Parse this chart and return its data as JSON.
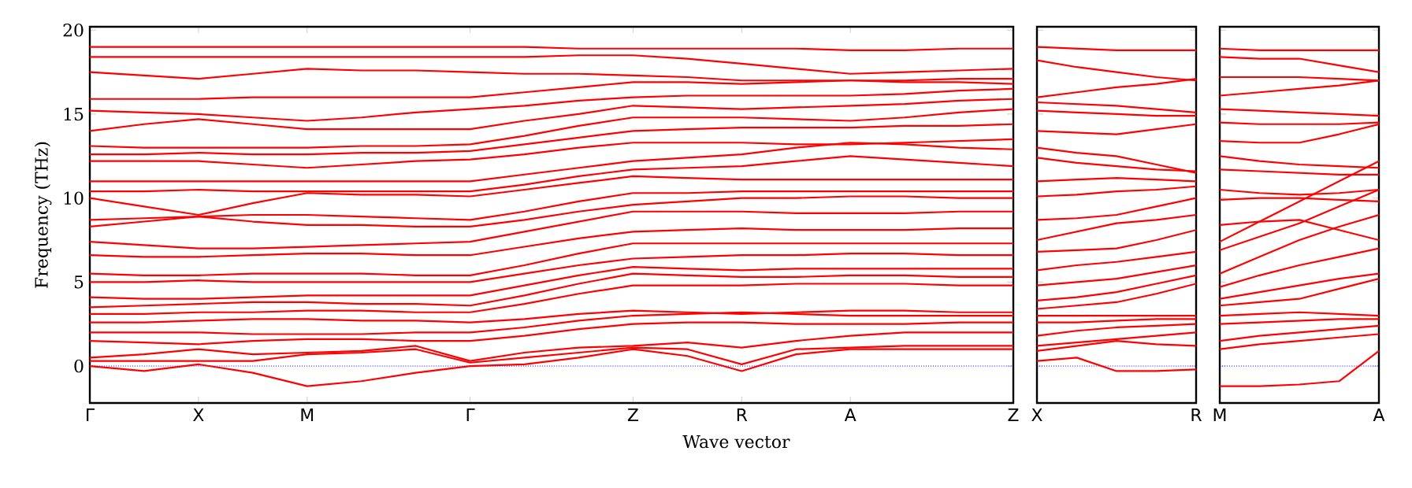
{
  "chart_data": [
    {
      "type": "line",
      "ylabel": "Frequency (THz)",
      "xlabel": "Wave vector",
      "ylim": [
        -2.2,
        20.2
      ],
      "categories": [
        "Γ",
        null,
        "X",
        null,
        "M",
        null,
        null,
        "Γ",
        null,
        null,
        "Z",
        null,
        "R",
        null,
        "A",
        null,
        null,
        "Z"
      ],
      "yticks": [
        0,
        5,
        10,
        15,
        20
      ],
      "ref_lines": [
        {
          "axis": "y",
          "value": 0,
          "color": "#0000ff",
          "line_style": "dotted"
        }
      ],
      "series": [
        {
          "color": "#ff0000",
          "values": [
            0,
            -0.3,
            0.1,
            -0.4,
            -1.2,
            -0.9,
            -0.4,
            0,
            0.1,
            0.5,
            1.0,
            0.6,
            -0.3,
            0.7,
            1.0,
            1.0,
            1.0,
            1.0
          ]
        },
        {
          "color": "#ff0000",
          "values": [
            0.3,
            0.3,
            0.3,
            0.3,
            0.7,
            0.8,
            1.0,
            0.2,
            0.5,
            0.8,
            1.1,
            1.0,
            0.1,
            1.0,
            1.1,
            1.2,
            1.2,
            1.2
          ]
        },
        {
          "color": "#ff0000",
          "values": [
            0.5,
            0.7,
            1.0,
            0.7,
            0.8,
            0.9,
            1.2,
            0.3,
            0.8,
            1.1,
            1.2,
            1.4,
            1.1,
            1.5,
            1.8,
            2.0,
            2.0,
            2.0
          ]
        },
        {
          "color": "#ff0000",
          "values": [
            1.5,
            1.4,
            1.3,
            1.5,
            1.6,
            1.6,
            1.5,
            1.5,
            1.8,
            2.2,
            2.5,
            2.6,
            2.6,
            2.5,
            2.5,
            2.5,
            2.6,
            2.6
          ]
        },
        {
          "color": "#ff0000",
          "values": [
            2.0,
            2.0,
            2.0,
            1.9,
            1.9,
            1.9,
            2.0,
            2.0,
            2.3,
            2.7,
            3.0,
            3.1,
            3.2,
            3.1,
            3.0,
            3.0,
            3.0,
            3.0
          ]
        },
        {
          "color": "#ff0000",
          "values": [
            2.6,
            2.6,
            2.7,
            2.8,
            2.8,
            2.7,
            2.7,
            2.6,
            2.8,
            3.1,
            3.3,
            3.2,
            3.1,
            3.2,
            3.3,
            3.3,
            3.2,
            3.2
          ]
        },
        {
          "color": "#ff0000",
          "values": [
            3.1,
            3.1,
            3.2,
            3.2,
            3.3,
            3.3,
            3.2,
            3.2,
            3.7,
            4.3,
            4.8,
            4.8,
            4.8,
            4.9,
            4.9,
            4.9,
            4.8,
            4.8
          ]
        },
        {
          "color": "#ff0000",
          "values": [
            3.5,
            3.6,
            3.7,
            3.8,
            3.8,
            3.7,
            3.7,
            3.6,
            4.2,
            4.9,
            5.5,
            5.4,
            5.3,
            5.3,
            5.4,
            5.4,
            5.3,
            5.3
          ]
        },
        {
          "color": "#ff0000",
          "values": [
            4.1,
            4.0,
            4.0,
            4.1,
            4.2,
            4.2,
            4.2,
            4.2,
            4.8,
            5.4,
            5.9,
            5.8,
            5.7,
            5.8,
            5.8,
            5.8,
            5.8,
            5.8
          ]
        },
        {
          "color": "#ff0000",
          "values": [
            5.0,
            5.0,
            5.1,
            5.0,
            5.0,
            5.0,
            5.0,
            5.0,
            5.5,
            6.0,
            6.4,
            6.5,
            6.6,
            6.6,
            6.7,
            6.7,
            6.6,
            6.6
          ]
        },
        {
          "color": "#ff0000",
          "values": [
            5.5,
            5.4,
            5.4,
            5.5,
            5.5,
            5.5,
            5.4,
            5.4,
            6.0,
            6.7,
            7.3,
            7.3,
            7.3,
            7.3,
            7.3,
            7.3,
            7.3,
            7.3
          ]
        },
        {
          "color": "#ff0000",
          "values": [
            6.6,
            6.5,
            6.5,
            6.6,
            6.7,
            6.7,
            6.6,
            6.6,
            7.1,
            7.6,
            8.0,
            8.1,
            8.2,
            8.1,
            8.1,
            8.1,
            8.2,
            8.2
          ]
        },
        {
          "color": "#ff0000",
          "values": [
            7.4,
            7.2,
            7.0,
            7.0,
            7.1,
            7.2,
            7.3,
            7.4,
            8.0,
            8.6,
            9.2,
            9.2,
            9.2,
            9.1,
            9.1,
            9.1,
            9.2,
            9.2
          ]
        },
        {
          "color": "#ff0000",
          "values": [
            8.3,
            8.6,
            8.9,
            8.6,
            8.4,
            8.4,
            8.3,
            8.3,
            8.7,
            9.2,
            9.6,
            9.8,
            10.0,
            10.0,
            10.1,
            10.1,
            10.0,
            10.0
          ]
        },
        {
          "color": "#ff0000",
          "values": [
            8.7,
            8.8,
            8.9,
            9.0,
            9.0,
            8.9,
            8.8,
            8.7,
            9.2,
            9.8,
            10.3,
            10.3,
            10.4,
            10.4,
            10.4,
            10.4,
            10.4,
            10.4
          ]
        },
        {
          "color": "#ff0000",
          "values": [
            10.0,
            9.5,
            9.0,
            9.7,
            10.3,
            10.2,
            10.2,
            10.1,
            10.5,
            10.9,
            11.3,
            11.2,
            11.1,
            11.1,
            11.1,
            11.1,
            11.1,
            11.1
          ]
        },
        {
          "color": "#ff0000",
          "values": [
            10.4,
            10.4,
            10.5,
            10.4,
            10.4,
            10.4,
            10.4,
            10.4,
            10.8,
            11.3,
            11.7,
            11.8,
            11.9,
            12.2,
            12.5,
            12.3,
            12.1,
            11.9
          ]
        },
        {
          "color": "#ff0000",
          "values": [
            11.0,
            11.0,
            11.0,
            11.0,
            11.0,
            11.0,
            11.0,
            11.0,
            11.4,
            11.8,
            12.2,
            12.4,
            12.6,
            13.0,
            13.3,
            13.2,
            13.0,
            12.9
          ]
        },
        {
          "color": "#ff0000",
          "values": [
            12.2,
            12.2,
            12.2,
            12.0,
            11.8,
            12.0,
            12.2,
            12.3,
            12.6,
            13.0,
            13.3,
            13.3,
            13.3,
            13.2,
            13.2,
            13.3,
            13.4,
            13.5
          ]
        },
        {
          "color": "#ff0000",
          "values": [
            12.6,
            12.6,
            12.7,
            12.6,
            12.6,
            12.7,
            12.7,
            12.8,
            13.2,
            13.6,
            14.0,
            14.1,
            14.2,
            14.2,
            14.2,
            14.3,
            14.3,
            14.4
          ]
        },
        {
          "color": "#ff0000",
          "values": [
            13.1,
            13.0,
            13.0,
            13.0,
            13.0,
            13.1,
            13.1,
            13.2,
            13.7,
            14.3,
            14.8,
            14.8,
            14.8,
            14.7,
            14.6,
            14.8,
            15.1,
            15.3
          ]
        },
        {
          "color": "#ff0000",
          "values": [
            14.0,
            14.4,
            14.7,
            14.4,
            14.1,
            14.1,
            14.1,
            14.1,
            14.6,
            15.0,
            15.5,
            15.4,
            15.3,
            15.4,
            15.5,
            15.6,
            15.8,
            15.9
          ]
        },
        {
          "color": "#ff0000",
          "values": [
            15.2,
            15.1,
            15.0,
            14.8,
            14.6,
            14.8,
            15.1,
            15.3,
            15.5,
            15.8,
            16.0,
            16.1,
            16.1,
            16.1,
            16.1,
            16.2,
            16.4,
            16.5
          ]
        },
        {
          "color": "#ff0000",
          "values": [
            15.9,
            15.9,
            15.9,
            16.0,
            16.0,
            16.0,
            16.0,
            16.0,
            16.3,
            16.6,
            16.9,
            16.9,
            16.8,
            16.9,
            17.0,
            17.0,
            17.1,
            17.1
          ]
        },
        {
          "color": "#ff0000",
          "values": [
            17.5,
            17.3,
            17.1,
            17.4,
            17.7,
            17.6,
            17.6,
            17.5,
            17.4,
            17.4,
            17.3,
            17.2,
            17.0,
            17.0,
            17.0,
            16.9,
            16.9,
            16.8
          ]
        },
        {
          "color": "#ff0000",
          "values": [
            18.4,
            18.4,
            18.4,
            18.4,
            18.4,
            18.4,
            18.4,
            18.4,
            18.4,
            18.5,
            18.5,
            18.3,
            18.0,
            17.7,
            17.4,
            17.5,
            17.6,
            17.7
          ]
        },
        {
          "color": "#ff0000",
          "values": [
            19.0,
            19.0,
            19.0,
            19.0,
            19.0,
            19.0,
            19.0,
            19.0,
            19.0,
            18.9,
            18.9,
            18.9,
            18.9,
            18.9,
            18.8,
            18.8,
            18.9,
            18.9
          ]
        }
      ]
    },
    {
      "type": "line",
      "tick_labels": "x",
      "ylim": [
        -2.2,
        20.2
      ],
      "categories": [
        "X",
        null,
        null,
        null,
        "R"
      ],
      "yticks": [
        0,
        5,
        10,
        15,
        20
      ],
      "ref_lines": [
        {
          "axis": "y",
          "value": 0,
          "color": "#0000ff",
          "line_style": "dotted"
        }
      ],
      "series": [
        {
          "color": "#ff0000",
          "values": [
            0.3,
            0.5,
            -0.3,
            -0.3,
            -0.2
          ]
        },
        {
          "color": "#ff0000",
          "values": [
            0.9,
            1.2,
            1.5,
            1.3,
            1.2
          ]
        },
        {
          "color": "#ff0000",
          "values": [
            1.2,
            1.4,
            1.6,
            1.8,
            2.0
          ]
        },
        {
          "color": "#ff0000",
          "values": [
            1.8,
            2.1,
            2.3,
            2.4,
            2.5
          ]
        },
        {
          "color": "#ff0000",
          "values": [
            2.6,
            2.6,
            2.7,
            2.8,
            2.8
          ]
        },
        {
          "color": "#ff0000",
          "values": [
            3.0,
            3.0,
            3.0,
            3.0,
            3.0
          ]
        },
        {
          "color": "#ff0000",
          "values": [
            3.4,
            3.6,
            3.8,
            4.3,
            4.9
          ]
        },
        {
          "color": "#ff0000",
          "values": [
            3.9,
            4.1,
            4.4,
            4.9,
            5.4
          ]
        },
        {
          "color": "#ff0000",
          "values": [
            4.8,
            5.0,
            5.2,
            5.6,
            6.0
          ]
        },
        {
          "color": "#ff0000",
          "values": [
            5.7,
            6.0,
            6.2,
            6.5,
            6.8
          ]
        },
        {
          "color": "#ff0000",
          "values": [
            6.8,
            6.9,
            7.0,
            7.5,
            8.1
          ]
        },
        {
          "color": "#ff0000",
          "values": [
            7.5,
            8.0,
            8.5,
            8.7,
            9.0
          ]
        },
        {
          "color": "#ff0000",
          "values": [
            8.7,
            8.8,
            9.0,
            9.5,
            10.0
          ]
        },
        {
          "color": "#ff0000",
          "values": [
            10.1,
            10.2,
            10.4,
            10.5,
            10.7
          ]
        },
        {
          "color": "#ff0000",
          "values": [
            11.0,
            11.1,
            11.2,
            11.1,
            11.0
          ]
        },
        {
          "color": "#ff0000",
          "values": [
            12.4,
            12.1,
            11.9,
            11.7,
            11.6
          ]
        },
        {
          "color": "#ff0000",
          "values": [
            13.0,
            12.7,
            12.5,
            12.0,
            11.5
          ]
        },
        {
          "color": "#ff0000",
          "values": [
            14.0,
            13.9,
            13.8,
            14.1,
            14.4
          ]
        },
        {
          "color": "#ff0000",
          "values": [
            15.2,
            15.1,
            15.0,
            14.9,
            14.9
          ]
        },
        {
          "color": "#ff0000",
          "values": [
            15.7,
            15.6,
            15.5,
            15.3,
            15.1
          ]
        },
        {
          "color": "#ff0000",
          "values": [
            16.0,
            16.3,
            16.6,
            16.8,
            17.1
          ]
        },
        {
          "color": "#ff0000",
          "values": [
            18.2,
            17.8,
            17.5,
            17.2,
            17.0
          ]
        },
        {
          "color": "#ff0000",
          "values": [
            19.0,
            18.9,
            18.8,
            18.8,
            18.8
          ]
        }
      ]
    },
    {
      "type": "line",
      "tick_labels": "x",
      "ylim": [
        -2.2,
        20.2
      ],
      "categories": [
        "M",
        null,
        null,
        null,
        "A"
      ],
      "yticks": [
        0,
        5,
        10,
        15,
        20
      ],
      "ref_lines": [
        {
          "axis": "y",
          "value": 0,
          "color": "#0000ff",
          "line_style": "dotted"
        }
      ],
      "series": [
        {
          "color": "#ff0000",
          "values": [
            -1.2,
            -1.2,
            -1.1,
            -0.9,
            0.9
          ]
        },
        {
          "color": "#ff0000",
          "values": [
            1.0,
            1.3,
            1.5,
            1.7,
            1.9
          ]
        },
        {
          "color": "#ff0000",
          "values": [
            1.5,
            1.8,
            2.0,
            2.2,
            2.4
          ]
        },
        {
          "color": "#ff0000",
          "values": [
            2.5,
            2.6,
            2.7,
            2.8,
            2.8
          ]
        },
        {
          "color": "#ff0000",
          "values": [
            3.0,
            3.1,
            3.2,
            3.1,
            3.0
          ]
        },
        {
          "color": "#ff0000",
          "values": [
            3.6,
            3.8,
            4.0,
            4.6,
            5.2
          ]
        },
        {
          "color": "#ff0000",
          "values": [
            4.0,
            4.4,
            4.8,
            5.2,
            5.5
          ]
        },
        {
          "color": "#ff0000",
          "values": [
            4.7,
            5.4,
            6.0,
            6.5,
            7.0
          ]
        },
        {
          "color": "#ff0000",
          "values": [
            5.5,
            6.5,
            7.5,
            8.3,
            9.0
          ]
        },
        {
          "color": "#ff0000",
          "values": [
            6.9,
            7.7,
            8.5,
            9.5,
            10.5
          ]
        },
        {
          "color": "#ff0000",
          "values": [
            7.4,
            8.6,
            9.8,
            11.0,
            12.2
          ]
        },
        {
          "color": "#ff0000",
          "values": [
            8.4,
            8.6,
            8.7,
            8.1,
            7.5
          ]
        },
        {
          "color": "#ff0000",
          "values": [
            9.9,
            10.0,
            10.0,
            9.9,
            9.8
          ]
        },
        {
          "color": "#ff0000",
          "values": [
            10.5,
            10.3,
            10.2,
            10.3,
            10.5
          ]
        },
        {
          "color": "#ff0000",
          "values": [
            11.7,
            11.6,
            11.5,
            11.4,
            11.4
          ]
        },
        {
          "color": "#ff0000",
          "values": [
            12.5,
            12.2,
            12.0,
            11.9,
            11.8
          ]
        },
        {
          "color": "#ff0000",
          "values": [
            13.4,
            13.3,
            13.3,
            13.8,
            14.4
          ]
        },
        {
          "color": "#ff0000",
          "values": [
            14.5,
            14.4,
            14.4,
            14.4,
            14.5
          ]
        },
        {
          "color": "#ff0000",
          "values": [
            15.3,
            15.2,
            15.1,
            15.0,
            14.9
          ]
        },
        {
          "color": "#ff0000",
          "values": [
            16.1,
            16.3,
            16.5,
            16.7,
            17.0
          ]
        },
        {
          "color": "#ff0000",
          "values": [
            17.2,
            17.2,
            17.2,
            17.1,
            17.0
          ]
        },
        {
          "color": "#ff0000",
          "values": [
            18.4,
            18.3,
            18.3,
            17.9,
            17.5
          ]
        },
        {
          "color": "#ff0000",
          "values": [
            18.9,
            18.8,
            18.8,
            18.8,
            18.8
          ]
        }
      ]
    }
  ]
}
